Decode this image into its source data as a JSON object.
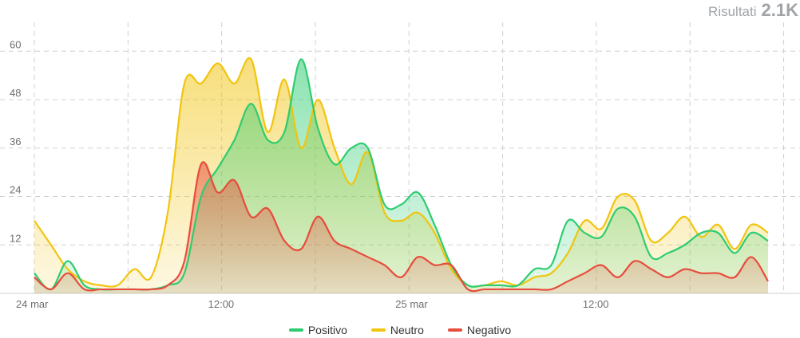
{
  "header": {
    "results_label": "Risultati",
    "results_value": "2.1K"
  },
  "colors": {
    "positive": "#2ecc71",
    "neutral": "#f1c40f",
    "negative": "#e74c3c"
  },
  "chart_data": {
    "type": "area",
    "title": "",
    "xlabel": "",
    "ylabel": "",
    "ylim": [
      0,
      64
    ],
    "yticks": [
      12,
      24,
      36,
      48,
      60
    ],
    "grid": true,
    "legend_position": "bottom",
    "x_ticks": [
      {
        "label": "24 mar",
        "hour": 0
      },
      {
        "label": "12:00",
        "hour": 12
      },
      {
        "label": "25 mar",
        "hour": 24
      },
      {
        "label": "12:00",
        "hour": 36
      }
    ],
    "x_start_hour": 0,
    "x_end_hour": 47,
    "series": [
      {
        "name": "Positivo",
        "color": "#2ecc71",
        "values": [
          5,
          1,
          8,
          2,
          1,
          1,
          1,
          1,
          2,
          5,
          24,
          31,
          38,
          47,
          38,
          40,
          58,
          41,
          32,
          36,
          36,
          22,
          22,
          25,
          17,
          7,
          2,
          2,
          2,
          2,
          6,
          7,
          18,
          15,
          14,
          21,
          19,
          9,
          10,
          12,
          15,
          15,
          10,
          15,
          13
        ]
      },
      {
        "name": "Neutro",
        "color": "#f1c40f",
        "values": [
          18,
          12,
          6,
          3,
          2,
          2,
          6,
          4,
          20,
          52,
          52,
          57,
          52,
          58,
          40,
          53,
          36,
          48,
          36,
          27,
          35,
          20,
          18,
          20,
          15,
          6,
          2,
          2,
          3,
          2,
          4,
          5,
          10,
          18,
          16,
          24,
          23,
          13,
          15,
          19,
          14,
          17,
          11,
          17,
          15
        ]
      },
      {
        "name": "Negativo",
        "color": "#e74c3c",
        "values": [
          4,
          1,
          5,
          1,
          1,
          1,
          1,
          1,
          2,
          8,
          32,
          25,
          28,
          19,
          21,
          13,
          11,
          19,
          13,
          11,
          9,
          7,
          4,
          9,
          7,
          7,
          1,
          1,
          1,
          1,
          1,
          1,
          3,
          5,
          7,
          4,
          8,
          6,
          4,
          6,
          5,
          5,
          4,
          9,
          3
        ]
      }
    ]
  }
}
